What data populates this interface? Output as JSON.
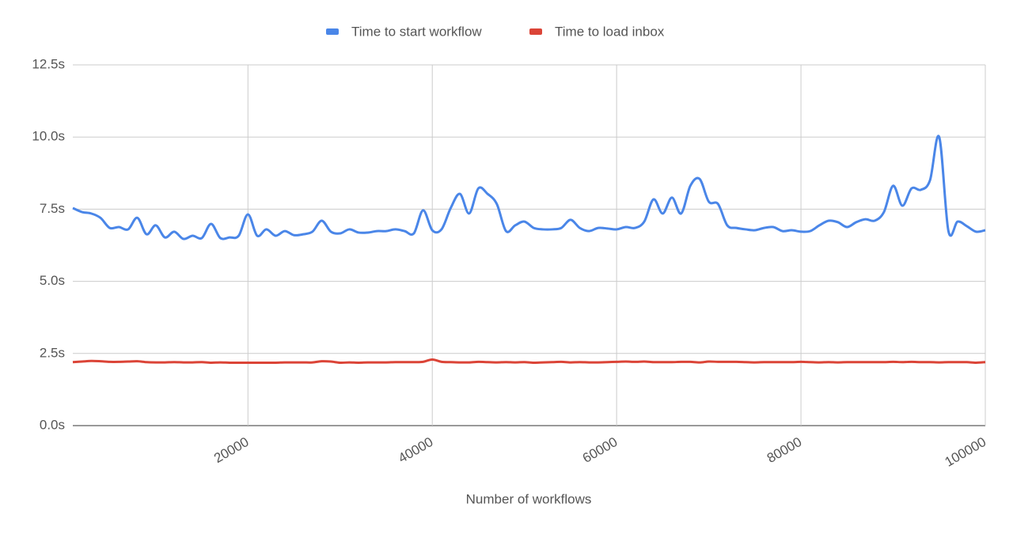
{
  "chart_data": {
    "type": "line",
    "x_label": "Number of workflows",
    "x": [
      1000,
      2000,
      3000,
      4000,
      5000,
      6000,
      7000,
      8000,
      9000,
      10000,
      11000,
      12000,
      13000,
      14000,
      15000,
      16000,
      17000,
      18000,
      19000,
      20000,
      21000,
      22000,
      23000,
      24000,
      25000,
      26000,
      27000,
      28000,
      29000,
      30000,
      31000,
      32000,
      33000,
      34000,
      35000,
      36000,
      37000,
      38000,
      39000,
      40000,
      41000,
      42000,
      43000,
      44000,
      45000,
      46000,
      47000,
      48000,
      49000,
      50000,
      51000,
      52000,
      53000,
      54000,
      55000,
      56000,
      57000,
      58000,
      59000,
      60000,
      61000,
      62000,
      63000,
      64000,
      65000,
      66000,
      67000,
      68000,
      69000,
      70000,
      71000,
      72000,
      73000,
      74000,
      75000,
      76000,
      77000,
      78000,
      79000,
      80000,
      81000,
      82000,
      83000,
      84000,
      85000,
      86000,
      87000,
      88000,
      89000,
      90000,
      91000,
      92000,
      93000,
      94000,
      95000,
      96000,
      97000,
      98000,
      99000,
      100000
    ],
    "series": [
      {
        "name": "Time to start workflow",
        "color": "#4a86e8",
        "values": [
          7.54,
          7.4,
          7.35,
          7.2,
          6.85,
          6.88,
          6.8,
          7.2,
          6.63,
          6.94,
          6.52,
          6.72,
          6.47,
          6.58,
          6.5,
          6.99,
          6.5,
          6.52,
          6.58,
          7.32,
          6.58,
          6.8,
          6.58,
          6.74,
          6.6,
          6.63,
          6.72,
          7.1,
          6.72,
          6.66,
          6.8,
          6.69,
          6.69,
          6.74,
          6.74,
          6.8,
          6.74,
          6.66,
          7.46,
          6.77,
          6.8,
          7.54,
          8.03,
          7.35,
          8.22,
          8.03,
          7.68,
          6.74,
          6.94,
          7.07,
          6.85,
          6.8,
          6.8,
          6.85,
          7.13,
          6.85,
          6.74,
          6.85,
          6.83,
          6.8,
          6.88,
          6.85,
          7.07,
          7.84,
          7.35,
          7.9,
          7.35,
          8.31,
          8.55,
          7.76,
          7.68,
          6.94,
          6.85,
          6.8,
          6.77,
          6.85,
          6.88,
          6.74,
          6.77,
          6.72,
          6.74,
          6.94,
          7.1,
          7.05,
          6.88,
          7.05,
          7.15,
          7.1,
          7.4,
          8.31,
          7.62,
          8.22,
          8.17,
          8.5,
          10.0,
          6.74,
          7.07,
          6.91,
          6.72,
          6.77
        ]
      },
      {
        "name": "Time to load inbox",
        "color": "#db4437",
        "values": [
          2.2,
          2.22,
          2.24,
          2.23,
          2.21,
          2.21,
          2.22,
          2.23,
          2.2,
          2.19,
          2.19,
          2.2,
          2.19,
          2.19,
          2.2,
          2.18,
          2.19,
          2.18,
          2.18,
          2.18,
          2.18,
          2.18,
          2.18,
          2.19,
          2.19,
          2.19,
          2.19,
          2.23,
          2.22,
          2.18,
          2.19,
          2.18,
          2.19,
          2.19,
          2.19,
          2.2,
          2.2,
          2.2,
          2.21,
          2.29,
          2.21,
          2.2,
          2.19,
          2.19,
          2.21,
          2.2,
          2.19,
          2.2,
          2.19,
          2.2,
          2.18,
          2.19,
          2.2,
          2.21,
          2.19,
          2.2,
          2.19,
          2.19,
          2.2,
          2.21,
          2.22,
          2.21,
          2.22,
          2.2,
          2.2,
          2.2,
          2.21,
          2.21,
          2.19,
          2.22,
          2.21,
          2.21,
          2.21,
          2.2,
          2.19,
          2.2,
          2.2,
          2.2,
          2.2,
          2.21,
          2.2,
          2.19,
          2.2,
          2.19,
          2.2,
          2.2,
          2.2,
          2.2,
          2.2,
          2.21,
          2.2,
          2.21,
          2.2,
          2.2,
          2.19,
          2.2,
          2.2,
          2.2,
          2.18,
          2.2
        ]
      }
    ],
    "xlim": [
      1000,
      100000
    ],
    "xticks": [
      20000,
      40000,
      60000,
      80000,
      100000
    ],
    "ylim": [
      0,
      12.5
    ],
    "yticks": [
      {
        "value": 0,
        "label": "0.0s"
      },
      {
        "value": 2.5,
        "label": "2.5s"
      },
      {
        "value": 5,
        "label": "5.0s"
      },
      {
        "value": 7.5,
        "label": "7.5s"
      },
      {
        "value": 10,
        "label": "10.0s"
      },
      {
        "value": 12.5,
        "label": "12.5s"
      }
    ],
    "grid": true,
    "legend": "top"
  }
}
